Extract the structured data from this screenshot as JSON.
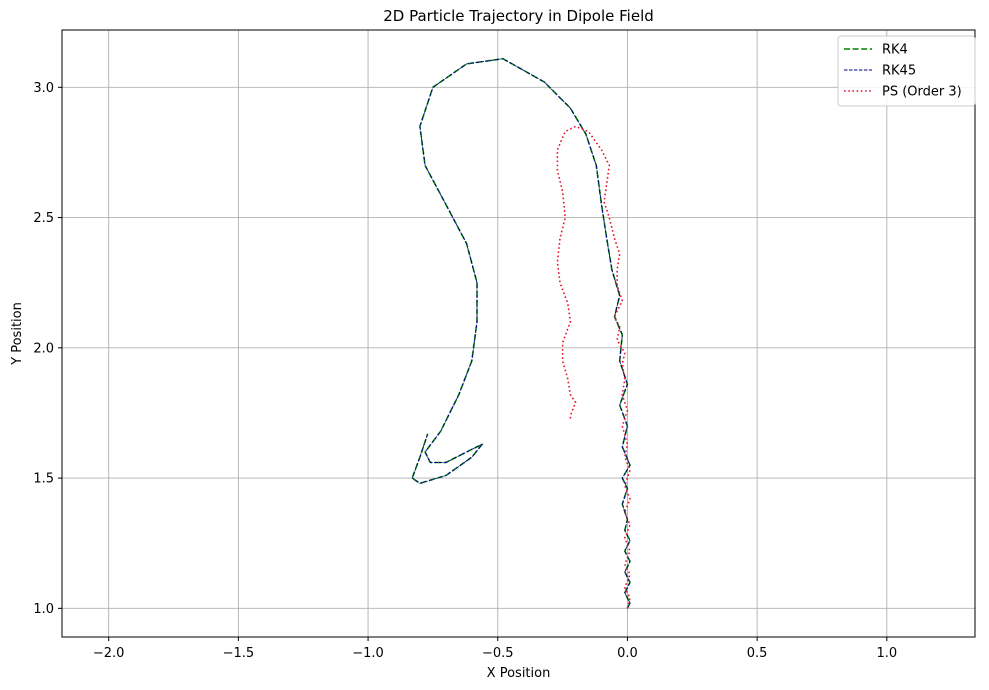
{
  "chart_data": {
    "type": "line",
    "title": "2D Particle Trajectory in Dipole Field",
    "xlabel": "X Position",
    "ylabel": "Y Position",
    "xlim": [
      -2.18,
      1.34
    ],
    "ylim": [
      0.89,
      3.22
    ],
    "x_ticks": [
      -2.0,
      -1.5,
      -1.0,
      -0.5,
      0.0,
      0.5,
      1.0
    ],
    "x_tick_labels": [
      "−2.0",
      "−1.5",
      "−1.0",
      "−0.5",
      "0.0",
      "0.5",
      "1.0"
    ],
    "y_ticks": [
      1.0,
      1.5,
      2.0,
      2.5,
      3.0
    ],
    "y_tick_labels": [
      "1.0",
      "1.5",
      "2.0",
      "2.5",
      "3.0"
    ],
    "grid": true,
    "legend_position": "top-right",
    "series": [
      {
        "name": "RK4",
        "color": "#008000",
        "style": "dashed",
        "points": [
          [
            0.0,
            1.0
          ],
          [
            0.01,
            1.02
          ],
          [
            -0.01,
            1.06
          ],
          [
            0.01,
            1.1
          ],
          [
            -0.01,
            1.14
          ],
          [
            0.01,
            1.18
          ],
          [
            -0.01,
            1.22
          ],
          [
            0.01,
            1.26
          ],
          [
            -0.01,
            1.3
          ],
          [
            0.0,
            1.34
          ],
          [
            -0.02,
            1.4
          ],
          [
            0.0,
            1.46
          ],
          [
            -0.02,
            1.5
          ],
          [
            0.01,
            1.55
          ],
          [
            -0.02,
            1.62
          ],
          [
            0.0,
            1.7
          ],
          [
            -0.03,
            1.78
          ],
          [
            0.0,
            1.86
          ],
          [
            -0.03,
            1.95
          ],
          [
            -0.02,
            2.05
          ],
          [
            -0.05,
            2.12
          ],
          [
            -0.03,
            2.2
          ],
          [
            -0.06,
            2.3
          ],
          [
            -0.08,
            2.42
          ],
          [
            -0.1,
            2.55
          ],
          [
            -0.12,
            2.7
          ],
          [
            -0.16,
            2.82
          ],
          [
            -0.22,
            2.92
          ],
          [
            -0.32,
            3.02
          ],
          [
            -0.48,
            3.11
          ],
          [
            -0.62,
            3.09
          ],
          [
            -0.75,
            3.0
          ],
          [
            -0.8,
            2.85
          ],
          [
            -0.78,
            2.7
          ],
          [
            -0.7,
            2.55
          ],
          [
            -0.62,
            2.4
          ],
          [
            -0.58,
            2.25
          ],
          [
            -0.58,
            2.1
          ],
          [
            -0.6,
            1.95
          ],
          [
            -0.65,
            1.82
          ],
          [
            -0.72,
            1.68
          ],
          [
            -0.78,
            1.6
          ],
          [
            -0.76,
            1.56
          ],
          [
            -0.7,
            1.56
          ],
          [
            -0.62,
            1.6
          ],
          [
            -0.56,
            1.63
          ],
          [
            -0.6,
            1.58
          ],
          [
            -0.7,
            1.51
          ],
          [
            -0.8,
            1.48
          ],
          [
            -0.83,
            1.5
          ],
          [
            -0.8,
            1.58
          ],
          [
            -0.77,
            1.67
          ]
        ]
      },
      {
        "name": "RK45",
        "color": "#00008b",
        "style": "thin-dashed",
        "points": [
          [
            0.0,
            1.0
          ],
          [
            0.01,
            1.02
          ],
          [
            -0.01,
            1.06
          ],
          [
            0.01,
            1.1
          ],
          [
            -0.01,
            1.14
          ],
          [
            0.01,
            1.18
          ],
          [
            -0.01,
            1.22
          ],
          [
            0.01,
            1.26
          ],
          [
            -0.01,
            1.3
          ],
          [
            0.0,
            1.34
          ],
          [
            -0.02,
            1.4
          ],
          [
            0.0,
            1.46
          ],
          [
            -0.02,
            1.5
          ],
          [
            0.01,
            1.55
          ],
          [
            -0.02,
            1.62
          ],
          [
            0.0,
            1.7
          ],
          [
            -0.03,
            1.78
          ],
          [
            0.0,
            1.86
          ],
          [
            -0.03,
            1.95
          ],
          [
            -0.02,
            2.05
          ],
          [
            -0.05,
            2.12
          ],
          [
            -0.03,
            2.2
          ],
          [
            -0.06,
            2.3
          ],
          [
            -0.08,
            2.42
          ],
          [
            -0.1,
            2.55
          ],
          [
            -0.12,
            2.7
          ],
          [
            -0.16,
            2.82
          ],
          [
            -0.22,
            2.92
          ],
          [
            -0.32,
            3.02
          ],
          [
            -0.48,
            3.11
          ],
          [
            -0.62,
            3.09
          ],
          [
            -0.75,
            3.0
          ],
          [
            -0.8,
            2.85
          ],
          [
            -0.78,
            2.7
          ],
          [
            -0.7,
            2.55
          ],
          [
            -0.62,
            2.4
          ],
          [
            -0.58,
            2.25
          ],
          [
            -0.58,
            2.1
          ],
          [
            -0.6,
            1.95
          ],
          [
            -0.65,
            1.82
          ],
          [
            -0.72,
            1.68
          ],
          [
            -0.78,
            1.6
          ],
          [
            -0.76,
            1.56
          ],
          [
            -0.7,
            1.56
          ],
          [
            -0.62,
            1.6
          ],
          [
            -0.56,
            1.63
          ],
          [
            -0.6,
            1.58
          ],
          [
            -0.7,
            1.51
          ],
          [
            -0.8,
            1.48
          ],
          [
            -0.83,
            1.5
          ],
          [
            -0.8,
            1.58
          ],
          [
            -0.77,
            1.67
          ]
        ]
      },
      {
        "name": "PS (Order 3)",
        "color": "#e8112d",
        "style": "dotted",
        "points": [
          [
            0.0,
            1.0
          ],
          [
            0.01,
            1.04
          ],
          [
            -0.01,
            1.08
          ],
          [
            0.01,
            1.13
          ],
          [
            -0.01,
            1.17
          ],
          [
            0.01,
            1.22
          ],
          [
            -0.01,
            1.27
          ],
          [
            0.01,
            1.32
          ],
          [
            -0.01,
            1.37
          ],
          [
            0.01,
            1.42
          ],
          [
            -0.01,
            1.47
          ],
          [
            0.01,
            1.53
          ],
          [
            -0.01,
            1.58
          ],
          [
            0.0,
            1.63
          ],
          [
            -0.02,
            1.7
          ],
          [
            0.0,
            1.76
          ],
          [
            -0.02,
            1.82
          ],
          [
            -0.01,
            1.88
          ],
          [
            -0.02,
            1.94
          ],
          [
            -0.01,
            1.98
          ],
          [
            -0.04,
            2.03
          ],
          [
            -0.03,
            2.08
          ],
          [
            -0.05,
            2.12
          ],
          [
            -0.02,
            2.18
          ],
          [
            -0.04,
            2.24
          ],
          [
            -0.04,
            2.3
          ],
          [
            -0.03,
            2.36
          ],
          [
            -0.05,
            2.42
          ],
          [
            -0.07,
            2.5
          ],
          [
            -0.09,
            2.56
          ],
          [
            -0.08,
            2.63
          ],
          [
            -0.07,
            2.7
          ],
          [
            -0.1,
            2.76
          ],
          [
            -0.15,
            2.83
          ],
          [
            -0.2,
            2.85
          ],
          [
            -0.24,
            2.83
          ],
          [
            -0.27,
            2.76
          ],
          [
            -0.27,
            2.68
          ],
          [
            -0.25,
            2.6
          ],
          [
            -0.24,
            2.5
          ],
          [
            -0.26,
            2.42
          ],
          [
            -0.27,
            2.33
          ],
          [
            -0.26,
            2.25
          ],
          [
            -0.23,
            2.17
          ],
          [
            -0.22,
            2.1
          ],
          [
            -0.25,
            2.02
          ],
          [
            -0.25,
            1.95
          ],
          [
            -0.23,
            1.88
          ],
          [
            -0.22,
            1.82
          ],
          [
            -0.2,
            1.79
          ],
          [
            -0.22,
            1.74
          ],
          [
            -0.22,
            1.72
          ]
        ]
      }
    ]
  }
}
